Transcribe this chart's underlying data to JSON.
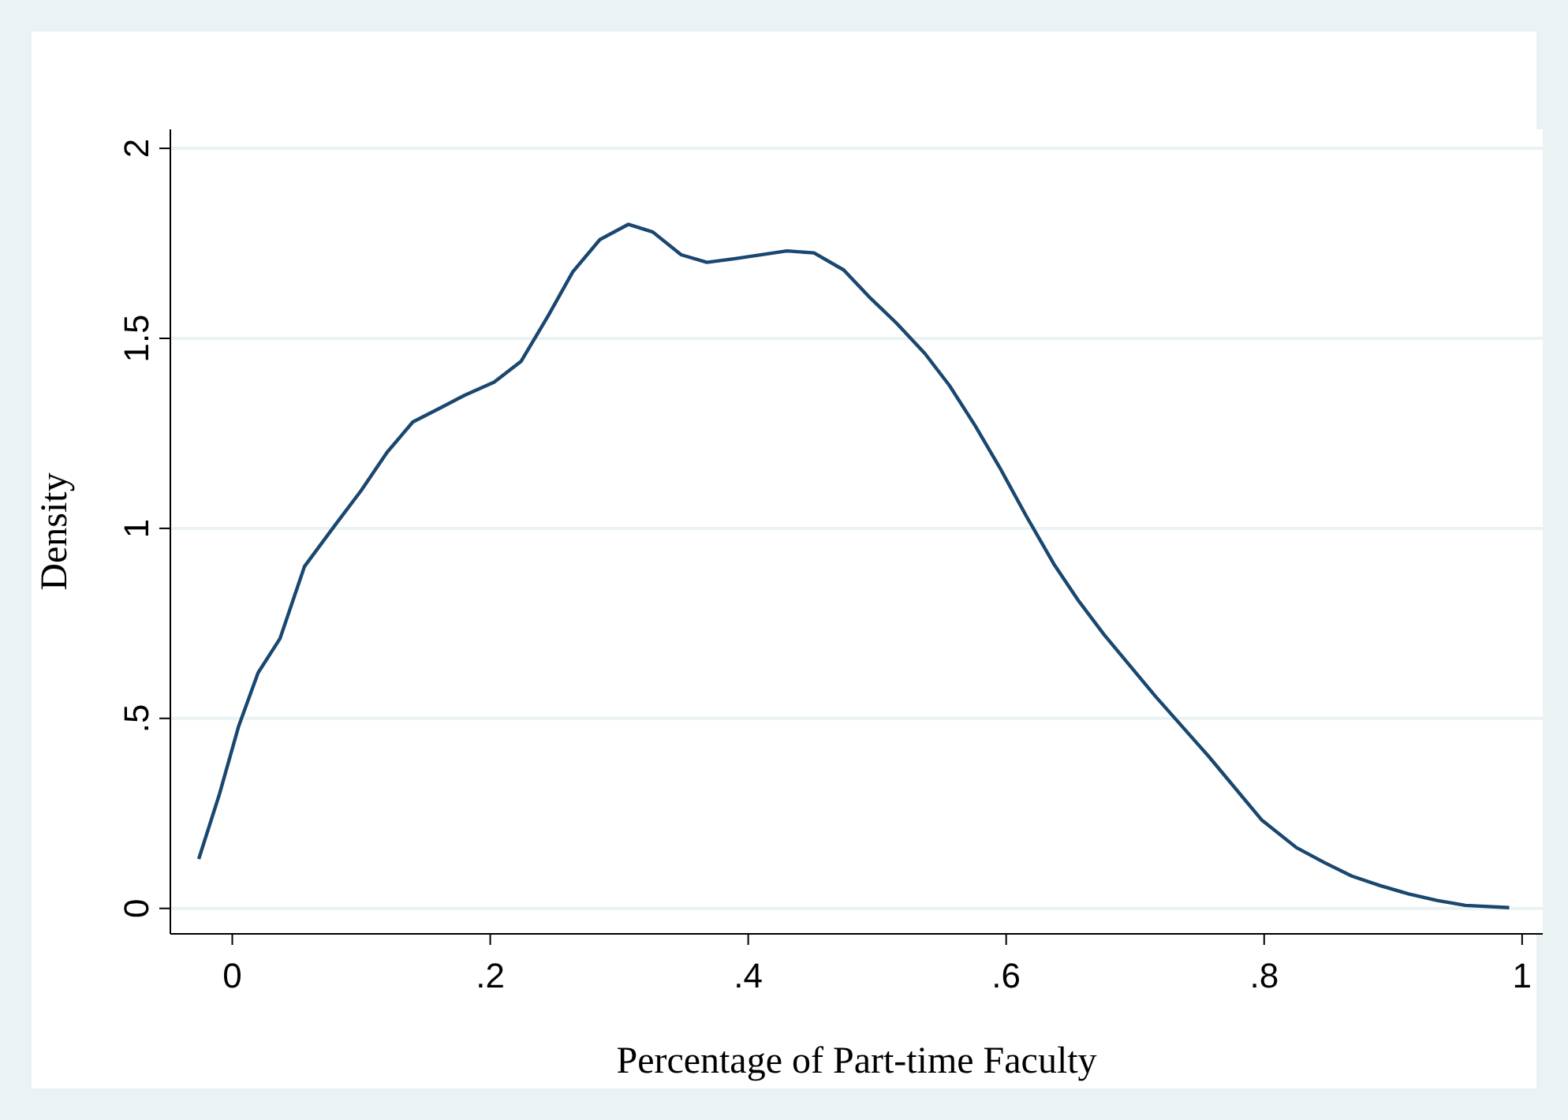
{
  "chart_data": {
    "type": "line",
    "xlabel": "Percentage of Part-time Faculty",
    "ylabel": "Density",
    "x": [
      -0.026,
      -0.01,
      0.005,
      0.02,
      0.037,
      0.056,
      0.08,
      0.1,
      0.12,
      0.14,
      0.163,
      0.18,
      0.203,
      0.224,
      0.245,
      0.264,
      0.285,
      0.307,
      0.326,
      0.348,
      0.368,
      0.39,
      0.43,
      0.451,
      0.474,
      0.495,
      0.515,
      0.537,
      0.556,
      0.576,
      0.595,
      0.616,
      0.637,
      0.656,
      0.676,
      0.716,
      0.757,
      0.798,
      0.825,
      0.847,
      0.868,
      0.89,
      0.912,
      0.934,
      0.956,
      0.99
    ],
    "series": [
      {
        "color": "#1a476f",
        "values": [
          0.13,
          0.3,
          0.48,
          0.62,
          0.71,
          0.9,
          1.01,
          1.1,
          1.2,
          1.28,
          1.32,
          1.35,
          1.385,
          1.44,
          1.56,
          1.675,
          1.76,
          1.8,
          1.78,
          1.72,
          1.7,
          1.71,
          1.73,
          1.725,
          1.68,
          1.605,
          1.54,
          1.46,
          1.376,
          1.27,
          1.16,
          1.03,
          0.906,
          0.81,
          0.72,
          0.557,
          0.4,
          0.233,
          0.16,
          0.12,
          0.085,
          0.06,
          0.038,
          0.021,
          0.008,
          0.002
        ]
      }
    ],
    "xlim": [
      -0.048,
      1.016
    ],
    "ylim": [
      -0.067,
      2.05
    ],
    "xticks": [
      0,
      {
        "value": 0.2,
        "label": ".2"
      },
      {
        "value": 0.4,
        "label": ".4"
      },
      {
        "value": 0.6,
        "label": ".6"
      },
      {
        "value": 0.8,
        "label": ".8"
      },
      1
    ],
    "yticks": [
      0,
      {
        "value": 0.5,
        "label": ".5"
      },
      1,
      {
        "value": 1.5,
        "label": "1.5"
      },
      2
    ],
    "grid": "y",
    "marker": "none",
    "line_style": "solid"
  }
}
